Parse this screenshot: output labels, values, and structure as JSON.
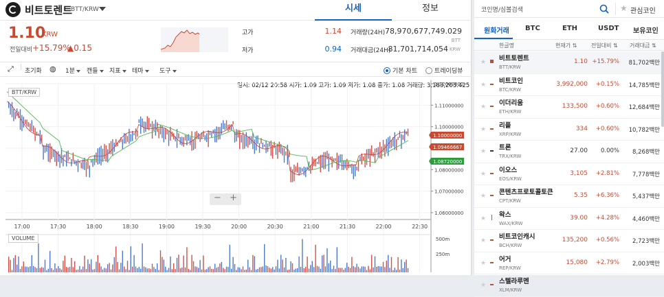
{
  "header": {
    "coin_name": "비트토렌트",
    "pair": "BTT/KRW",
    "tabs": [
      "시세",
      "정보"
    ]
  },
  "price": {
    "current": "1.10",
    "unit": "KRW",
    "change_label": "전일대비",
    "change_rate": "+15.79%",
    "change_value": "▲0.15"
  },
  "stats": {
    "high_label": "고가",
    "high": "1.14",
    "low_label": "저가",
    "low": "0.94",
    "volume_label": "거래량(24H)",
    "volume": "78,970,677,749.029",
    "volume_unit": "BTT",
    "amount_label": "거래대금(24H)",
    "amount": "81,701,714,054",
    "amount_unit": "KRW"
  },
  "toolbar": {
    "reset": "초기화",
    "interval": "1분",
    "candle": "캔들",
    "indicator": "지표",
    "theme": "테마",
    "tools": "도구",
    "basic_chart": "기본 차트",
    "tradingview": "트레이딩뷰"
  },
  "ohlc": "일시: 02/12 20:58 시가: 1.09 고가: 1.09 저가: 1.08 종가: 1.08 거래량: 3,183,203.425",
  "chart_labels": {
    "pair_tag": "BTT/KRW",
    "volume_tag": "VOLUME",
    "zoom_out": "−",
    "zoom_in": "+",
    "price_ticks": [
      "1.12000000",
      "1.11000000",
      "1.10000000",
      "1.09000000",
      "1.08000000",
      "1.07000000",
      "1.06000000"
    ],
    "time_ticks": [
      "17:00",
      "17:30",
      "18:00",
      "18:30",
      "19:00",
      "19:30",
      "20:00",
      "20:30",
      "21:00",
      "21:30",
      "22:00",
      "22:30"
    ],
    "vol_ticks": [
      "500m",
      "250m"
    ],
    "badges": [
      {
        "text": "1.10000000",
        "color": "#c84a31"
      },
      {
        "text": "1.09466667",
        "color": "#c84a31"
      },
      {
        "text": "1.08720000",
        "color": "#2e9b3e"
      }
    ]
  },
  "chart_data": {
    "type": "candlestick",
    "y_range": [
      1.06,
      1.12
    ],
    "last_price": 1.1,
    "ma_short": 1.09466667,
    "ma_long": 1.0872,
    "volume_unit_ticks": [
      "250m",
      "500m"
    ]
  },
  "right": {
    "search_placeholder": "코인명/심볼검색",
    "fav_label": "관심코인",
    "market_tabs": [
      "원화거래",
      "BTC",
      "ETH",
      "USDT",
      "보유코인"
    ],
    "list_headers": [
      "한글명",
      "현재가",
      "전일대비",
      "거래대금"
    ],
    "coins": [
      {
        "name": "비트토렌트",
        "code": "BTT/KRW",
        "price": "1.10",
        "rate": "+15.79%",
        "vol": "81,702백만",
        "color": "red",
        "sel": true,
        "ind": "box"
      },
      {
        "name": "비트코인",
        "code": "BTC/KRW",
        "price": "3,992,000",
        "rate": "+0.15%",
        "vol": "14,785백만",
        "color": "red",
        "ind": "dash"
      },
      {
        "name": "이더리움",
        "code": "ETH/KRW",
        "price": "133,500",
        "rate": "+0.60%",
        "vol": "12,684백만",
        "color": "red",
        "ind": "dash"
      },
      {
        "name": "리플",
        "code": "XRP/KRW",
        "price": "334",
        "rate": "+0.60%",
        "vol": "10,782백만",
        "color": "red",
        "ind": "dash"
      },
      {
        "name": "트론",
        "code": "TRX/KRW",
        "price": "27.00",
        "rate": "0.00%",
        "vol": "8,268백만",
        "color": "blk",
        "ind": "flat"
      },
      {
        "name": "이오스",
        "code": "EOS/KRW",
        "price": "3,105",
        "rate": "+2.81%",
        "vol": "7,778백만",
        "color": "red",
        "ind": "dash"
      },
      {
        "name": "콘텐츠프로토콜토큰",
        "code": "CPT/KRW",
        "price": "5.35",
        "rate": "+6.36%",
        "vol": "5,437백만",
        "color": "red",
        "ind": "dash"
      },
      {
        "name": "왁스",
        "code": "WAX/KRW",
        "price": "39.00",
        "rate": "+4.28%",
        "vol": "4,460백만",
        "color": "red",
        "ind": "up"
      },
      {
        "name": "비트코인캐시",
        "code": "BCH/KRW",
        "price": "135,200",
        "rate": "+0.56%",
        "vol": "2,723백만",
        "color": "red",
        "ind": "dash"
      },
      {
        "name": "어거",
        "code": "REP/KRW",
        "price": "15,080",
        "rate": "+2.79%",
        "vol": "2,003백만",
        "color": "red",
        "ind": "dash"
      },
      {
        "name": "스텔라루멘",
        "code": "XLM/KRW",
        "price": "",
        "rate": "",
        "vol": "",
        "color": "red",
        "ind": "dash"
      }
    ]
  }
}
